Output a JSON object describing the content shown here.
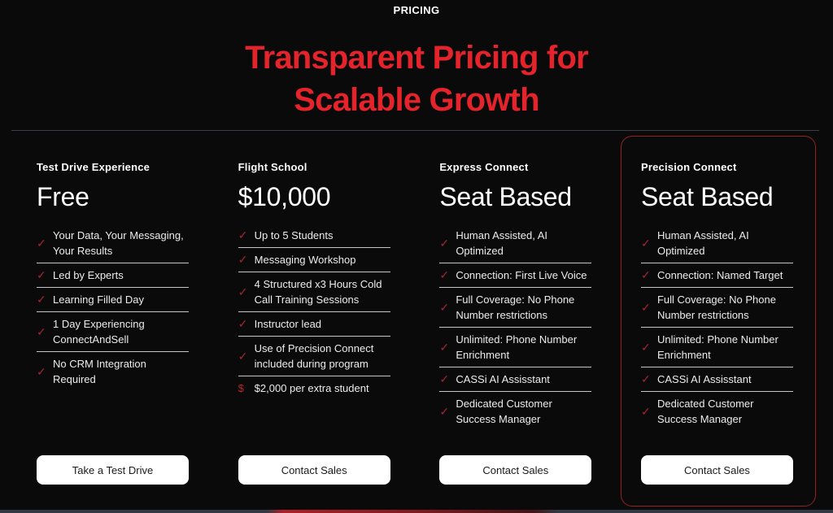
{
  "page": {
    "eyebrow": "PRICING",
    "title_line1": "Transparent Pricing for",
    "title_line2": "Scalable Growth"
  },
  "colors": {
    "background": "#0a0a0b",
    "accent_red": "#e5232b",
    "check_red": "#a2262e",
    "highlight_border_red": "#932126",
    "divider_gray": "#3a4049",
    "button_bg": "#ffffff"
  },
  "icons": {
    "check": "✓",
    "dollar": "$"
  },
  "plans": [
    {
      "name": "Test Drive Experience",
      "price": "Free",
      "cta": "Take a Test Drive",
      "highlighted": false,
      "features": [
        {
          "icon": "check",
          "text": "Your Data, Your Messaging, Your Results"
        },
        {
          "icon": "check",
          "text": "Led by Experts"
        },
        {
          "icon": "check",
          "text": "Learning Filled Day"
        },
        {
          "icon": "check",
          "text": "1 Day Experiencing ConnectAndSell"
        },
        {
          "icon": "check",
          "text": "No CRM Integration Required"
        }
      ]
    },
    {
      "name": "Flight School",
      "price": "$10,000",
      "cta": "Contact Sales",
      "highlighted": false,
      "features": [
        {
          "icon": "check",
          "text": "Up to 5 Students"
        },
        {
          "icon": "check",
          "text": "Messaging Workshop"
        },
        {
          "icon": "check",
          "text": "4 Structured x3 Hours Cold Call Training Sessions"
        },
        {
          "icon": "check",
          "text": "Instructor lead"
        },
        {
          "icon": "check",
          "text": "Use of Precision Connect included during program"
        },
        {
          "icon": "dollar",
          "text": "$2,000 per extra student"
        }
      ]
    },
    {
      "name": "Express Connect",
      "price": "Seat Based",
      "cta": "Contact Sales",
      "highlighted": false,
      "features": [
        {
          "icon": "check",
          "text": "Human Assisted, AI Optimized"
        },
        {
          "icon": "check",
          "text": "Connection: First Live Voice"
        },
        {
          "icon": "check",
          "text": "Full Coverage: No Phone Number restrictions"
        },
        {
          "icon": "check",
          "text": "Unlimited: Phone Number Enrichment"
        },
        {
          "icon": "check",
          "text": "CASSi AI Assisstant"
        },
        {
          "icon": "check",
          "text": "Dedicated Customer Success Manager"
        }
      ]
    },
    {
      "name": "Precision Connect",
      "price": "Seat Based",
      "cta": "Contact Sales",
      "highlighted": true,
      "features": [
        {
          "icon": "check",
          "text": "Human Assisted, AI Optimized"
        },
        {
          "icon": "check",
          "text": "Connection: Named Target"
        },
        {
          "icon": "check",
          "text": "Full Coverage: No Phone Number restrictions"
        },
        {
          "icon": "check",
          "text": "Unlimited: Phone Number Enrichment"
        },
        {
          "icon": "check",
          "text": "CASSi AI Assisstant"
        },
        {
          "icon": "check",
          "text": "Dedicated Customer Success Manager"
        }
      ]
    }
  ]
}
